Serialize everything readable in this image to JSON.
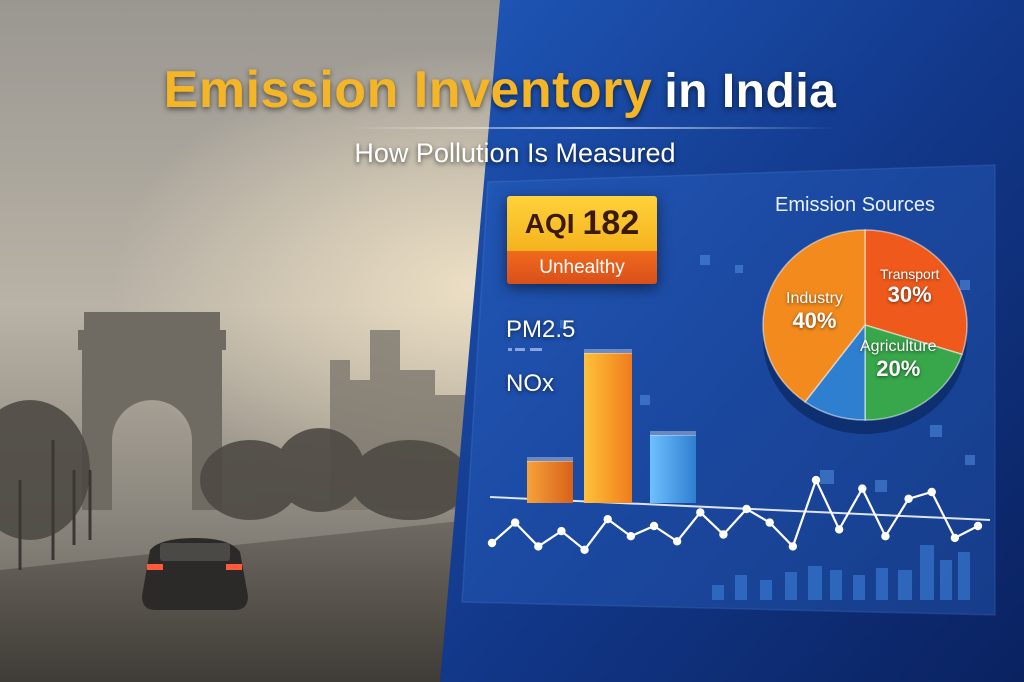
{
  "title": {
    "part1": "Emission Inventory",
    "part2": "in India"
  },
  "subtitle": "How Pollution Is Measured",
  "aqi": {
    "label": "AQI",
    "value": "182",
    "status": "Unhealthy"
  },
  "metrics": {
    "pm": "PM2.5",
    "nox": "NOx"
  },
  "pie": {
    "title": "Emission Sources",
    "slices": [
      {
        "name": "Industry",
        "percent": "40%",
        "value": 40,
        "color": "#f28a1e"
      },
      {
        "name": "Transport",
        "percent": "30%",
        "value": 30,
        "color": "#ef5a1c"
      },
      {
        "name": "Agriculture",
        "percent": "20%",
        "value": 20,
        "color": "#38a64a"
      },
      {
        "name": "",
        "percent": "",
        "value": 10,
        "color": "#2f7fd0"
      }
    ]
  },
  "chart_data": {
    "type": "bar",
    "categories": [
      "",
      "",
      ""
    ],
    "values": [
      42,
      150,
      68
    ],
    "colors": [
      "#f07d1c",
      "#f39a22",
      "#3f9be6"
    ]
  },
  "trend": [
    10,
    22,
    8,
    17,
    6,
    24,
    14,
    20,
    11,
    28,
    15,
    30,
    22,
    8,
    47,
    18,
    42,
    14,
    36,
    40,
    13,
    20
  ],
  "colors": {
    "accent": "#f4b526",
    "panel": "#1a4ea8",
    "alert": "#ef6a1d"
  }
}
